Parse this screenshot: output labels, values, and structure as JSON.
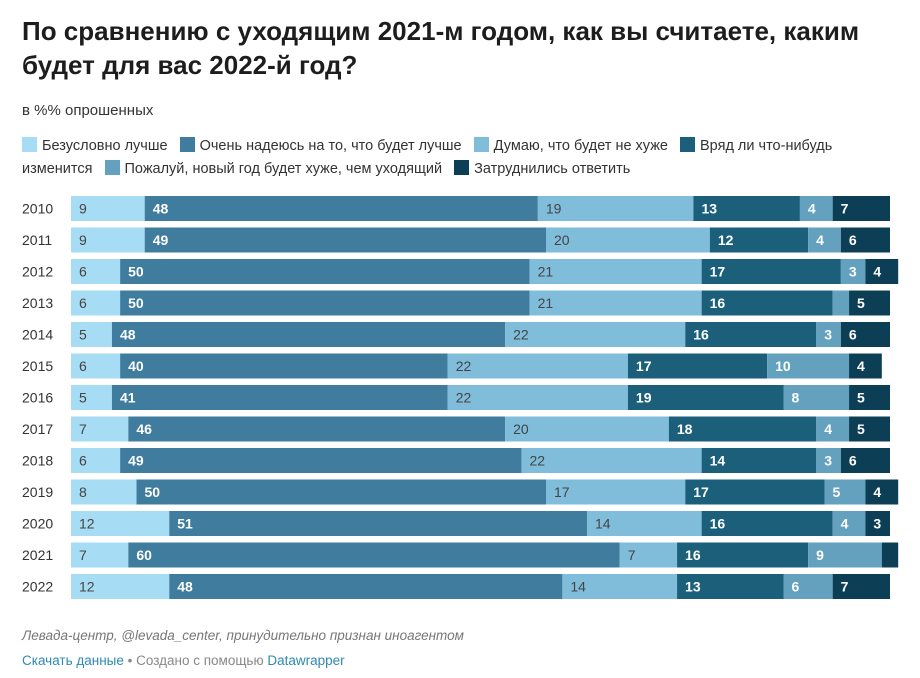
{
  "title": "По сравнению с уходящим 2021-м годом, как вы считаете, каким будет для вас 2022-й год?",
  "subtitle": "в %% опрошенных",
  "footer": {
    "source": "Левада-центр, @levada_center, принудительно признан иноагентом",
    "download": "Скачать данные",
    "separator": " • Создано с помощью ",
    "tool": "Datawrapper"
  },
  "chart_data": {
    "type": "bar",
    "orientation": "horizontal",
    "stacked": true,
    "legend_position": "top",
    "categories": [
      "2010",
      "2011",
      "2012",
      "2013",
      "2014",
      "2015",
      "2016",
      "2017",
      "2018",
      "2019",
      "2020",
      "2021",
      "2022"
    ],
    "series": [
      {
        "name": "Безусловно лучше",
        "color": "#a7dcf5",
        "values": [
          9,
          9,
          6,
          6,
          5,
          6,
          5,
          7,
          6,
          8,
          12,
          7,
          12
        ]
      },
      {
        "name": "Очень надеюсь на то, что будет лучше",
        "color": "#3f7c9d",
        "values": [
          48,
          49,
          50,
          50,
          48,
          40,
          41,
          46,
          49,
          50,
          51,
          60,
          48
        ]
      },
      {
        "name": "Думаю, что будет не хуже",
        "color": "#80bddb",
        "values": [
          19,
          20,
          21,
          21,
          22,
          22,
          22,
          20,
          22,
          17,
          14,
          7,
          14
        ]
      },
      {
        "name": "Вряд ли что-нибудь изменится",
        "color": "#1b5f7b",
        "values": [
          13,
          12,
          17,
          16,
          16,
          17,
          19,
          18,
          14,
          17,
          16,
          16,
          13
        ]
      },
      {
        "name": "Пожалуй,  новый год будет хуже, чем уходящий",
        "color": "#63a1bf",
        "values": [
          4,
          4,
          3,
          2,
          3,
          10,
          8,
          4,
          3,
          5,
          4,
          9,
          6
        ]
      },
      {
        "name": "Затруднились ответить",
        "color": "#0c3f56",
        "values": [
          7,
          6,
          4,
          5,
          6,
          4,
          5,
          5,
          6,
          4,
          3,
          2,
          7
        ]
      }
    ],
    "label_colors": [
      "#444444",
      "#ffffff",
      "#444444",
      "#ffffff",
      "#ffffff",
      "#ffffff"
    ]
  }
}
